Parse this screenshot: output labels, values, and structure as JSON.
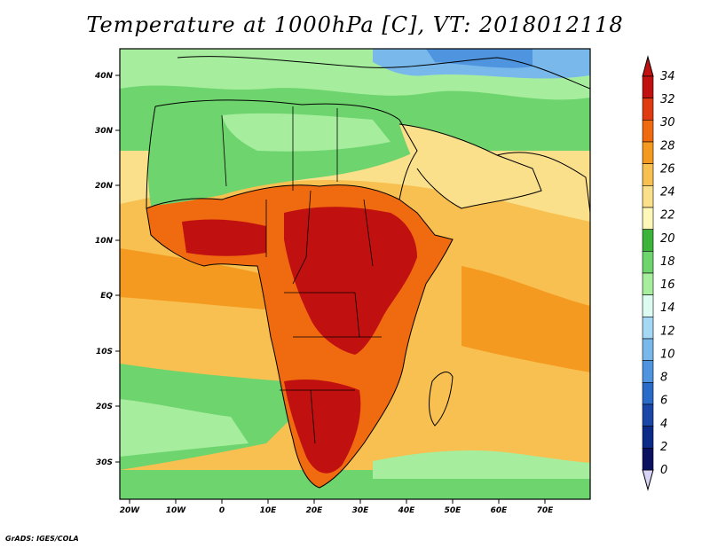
{
  "title": "Temperature at 1000hPa [C], VT: 2018012118",
  "credit": "GrADS: IGES/COLA",
  "lon_ticks": [
    "20W",
    "10W",
    "0",
    "10E",
    "20E",
    "30E",
    "40E",
    "50E",
    "60E",
    "70E"
  ],
  "lat_ticks": [
    "40N",
    "30N",
    "20N",
    "10N",
    "EQ",
    "10S",
    "20S",
    "30S"
  ],
  "colorbar": {
    "labels": [
      "34",
      "32",
      "30",
      "28",
      "26",
      "24",
      "22",
      "20",
      "18",
      "16",
      "14",
      "12",
      "10",
      "8",
      "6",
      "4",
      "2",
      "0"
    ],
    "colors": [
      "#c01010",
      "#e03a10",
      "#f06a10",
      "#f59a20",
      "#f8c050",
      "#fae08a",
      "#fdf7b8",
      "#3cb43c",
      "#6ed46e",
      "#a6ee9e",
      "#dcfcf2",
      "#a4d8f4",
      "#78b8ea",
      "#4e94de",
      "#2a6ac8",
      "#1a46a8",
      "#0c2a88",
      "#0a1260"
    ],
    "top_arrow_color": "#c01010",
    "bottom_arrow_color": "#d8d4f8"
  },
  "map": {
    "ocean_color": "#f8c050",
    "land_color": "#f06a10",
    "cool_color": "#6ed46e",
    "cold_color": "#a6ee9e"
  }
}
